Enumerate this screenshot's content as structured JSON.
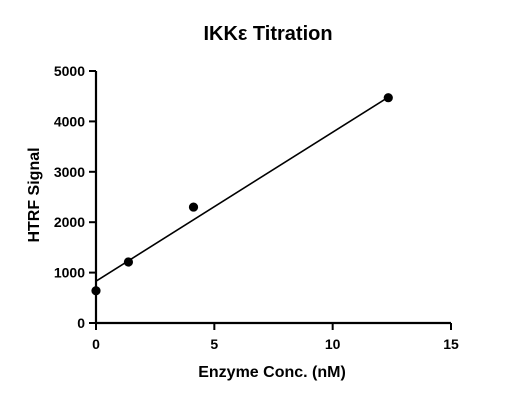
{
  "chart_data": {
    "type": "scatter",
    "title": "IKKε Titration",
    "xlabel": "Enzyme Conc. (nM)",
    "ylabel": "HTRF Signal",
    "xlim": [
      0,
      15
    ],
    "ylim": [
      0,
      5000
    ],
    "xticks": [
      0,
      5,
      10,
      15
    ],
    "yticks": [
      0,
      1000,
      2000,
      3000,
      4000,
      5000
    ],
    "series": [
      {
        "x": [
          0,
          1.37,
          4.12,
          12.35
        ],
        "y": [
          640,
          1210,
          2300,
          4470
        ]
      }
    ],
    "fit_line": {
      "x": [
        0,
        12.35
      ],
      "y": [
        830,
        4480
      ]
    },
    "grid": false,
    "colors": {
      "points": "#000000",
      "axes": "#000000"
    }
  }
}
